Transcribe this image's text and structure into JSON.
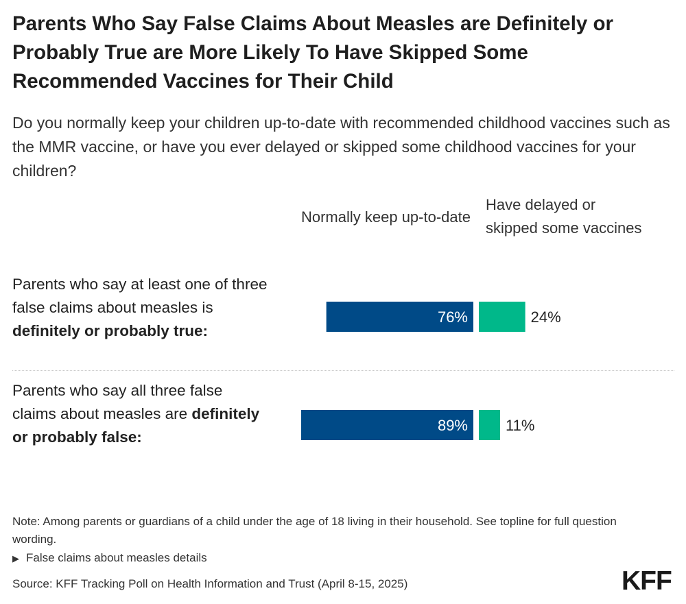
{
  "header": {
    "title": "Parents Who Say False Claims About Measles are Definitely or Probably True are More Likely To Have Skipped Some Recommended Vaccines for Their Child",
    "subtitle": "Do you normally keep your children up-to-date with recommended childhood vaccines such as the MMR vaccine, or have you ever delayed or skipped some childhood vaccines for your children?"
  },
  "rows": [
    {
      "label_prefix": "Parents who say at least one of three false claims about measles is ",
      "label_bold": "definitely or probably true:"
    },
    {
      "label_prefix": "Parents who say all three false claims about measles are ",
      "label_bold": "definitely or probably false:"
    }
  ],
  "chart_data": {
    "type": "bar",
    "orientation": "horizontal",
    "stacking": "diverging",
    "categories": [
      "Parents who say at least one of three false claims about measles is definitely or probably true:",
      "Parents who say all three false claims about measles are definitely or probably false:"
    ],
    "series": [
      {
        "name": "Normally keep up-to-date",
        "values": [
          76,
          89
        ],
        "color": "#004a87",
        "labels": [
          "76%",
          "89%"
        ]
      },
      {
        "name": "Have delayed or skipped some vaccines",
        "values": [
          24,
          11
        ],
        "color": "#00b88a",
        "labels": [
          "24%",
          "11%"
        ]
      }
    ],
    "unit": "%"
  },
  "footer": {
    "note": "Note: Among parents or guardians of a child under the age of 18 living in their household. See topline for full question wording.",
    "details_toggle": "False claims about measles details",
    "source": "Source: KFF Tracking Poll on Health Information and Trust (April 8-15, 2025)",
    "logo": "KFF"
  },
  "colors": {
    "primary": "#004a87",
    "secondary": "#00b88a",
    "text": "#222222"
  }
}
